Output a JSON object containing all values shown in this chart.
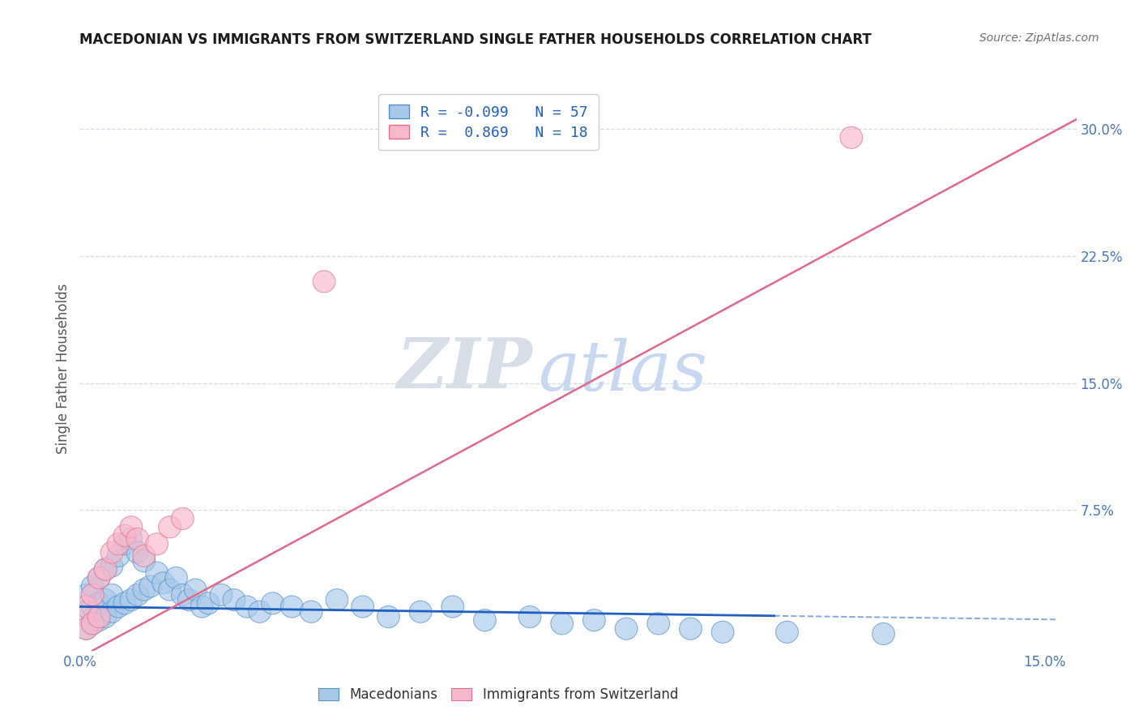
{
  "title": "MACEDONIAN VS IMMIGRANTS FROM SWITZERLAND SINGLE FATHER HOUSEHOLDS CORRELATION CHART",
  "source": "Source: ZipAtlas.com",
  "ylabel": "Single Father Households",
  "xlim": [
    0.0,
    0.155
  ],
  "ylim": [
    -0.008,
    0.325
  ],
  "xticks": [
    0.0,
    0.03,
    0.06,
    0.09,
    0.12,
    0.15
  ],
  "xtick_labels": [
    "0.0%",
    "",
    "",
    "",
    "",
    "15.0%"
  ],
  "yticks_right": [
    0.075,
    0.15,
    0.225,
    0.3
  ],
  "ytick_labels_right": [
    "7.5%",
    "15.0%",
    "22.5%",
    "30.0%"
  ],
  "grid_yticks": [
    0.075,
    0.15,
    0.225,
    0.3
  ],
  "blue_scatter_color": "#a8c8e8",
  "blue_scatter_edge": "#5090c8",
  "pink_scatter_color": "#f8b8cc",
  "pink_scatter_edge": "#e07090",
  "blue_line_color": "#2060c0",
  "pink_line_color": "#e06888",
  "watermark_zip_color": "#d8dfe8",
  "watermark_atlas_color": "#c8d8f0",
  "grid_color": "#d0dce8",
  "tick_color": "#4878c0",
  "title_color": "#1a1a1a",
  "source_color": "#707070",
  "background": "#ffffff",
  "axis_label_color": "#555555",
  "mac_x": [
    0.001,
    0.001,
    0.001,
    0.002,
    0.002,
    0.002,
    0.003,
    0.003,
    0.003,
    0.004,
    0.004,
    0.004,
    0.005,
    0.005,
    0.005,
    0.006,
    0.006,
    0.007,
    0.007,
    0.008,
    0.008,
    0.009,
    0.009,
    0.01,
    0.01,
    0.011,
    0.012,
    0.013,
    0.014,
    0.015,
    0.016,
    0.017,
    0.018,
    0.019,
    0.02,
    0.022,
    0.024,
    0.026,
    0.028,
    0.03,
    0.033,
    0.036,
    0.04,
    0.044,
    0.048,
    0.053,
    0.058,
    0.063,
    0.07,
    0.075,
    0.08,
    0.085,
    0.09,
    0.095,
    0.1,
    0.11,
    0.125
  ],
  "mac_y": [
    0.005,
    0.015,
    0.025,
    0.008,
    0.018,
    0.03,
    0.01,
    0.02,
    0.035,
    0.012,
    0.022,
    0.04,
    0.015,
    0.025,
    0.042,
    0.018,
    0.048,
    0.02,
    0.055,
    0.022,
    0.058,
    0.025,
    0.05,
    0.028,
    0.045,
    0.03,
    0.038,
    0.032,
    0.028,
    0.035,
    0.025,
    0.022,
    0.028,
    0.018,
    0.02,
    0.025,
    0.022,
    0.018,
    0.015,
    0.02,
    0.018,
    0.015,
    0.022,
    0.018,
    0.012,
    0.015,
    0.018,
    0.01,
    0.012,
    0.008,
    0.01,
    0.005,
    0.008,
    0.005,
    0.003,
    0.003,
    0.002
  ],
  "swiss_x": [
    0.001,
    0.001,
    0.002,
    0.002,
    0.003,
    0.003,
    0.004,
    0.005,
    0.006,
    0.007,
    0.008,
    0.009,
    0.01,
    0.012,
    0.014,
    0.016,
    0.038,
    0.12
  ],
  "swiss_y": [
    0.005,
    0.018,
    0.008,
    0.025,
    0.012,
    0.035,
    0.04,
    0.05,
    0.055,
    0.06,
    0.065,
    0.058,
    0.048,
    0.055,
    0.065,
    0.07,
    0.21,
    0.295
  ],
  "blue_line_x": [
    0.0,
    0.108,
    0.152
  ],
  "blue_line_slope": -0.05,
  "blue_line_intercept": 0.018,
  "pink_line_x0": -0.003,
  "pink_line_x1": 0.152,
  "pink_line_slope": 2.05,
  "pink_line_intercept": -0.012
}
